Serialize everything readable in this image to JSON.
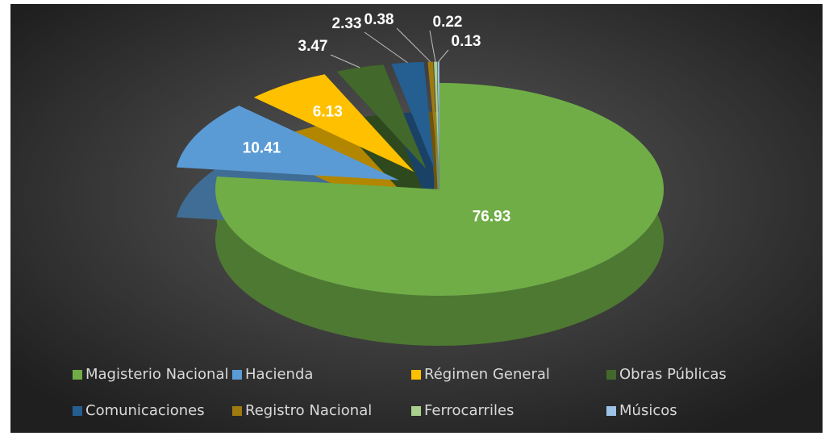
{
  "chart_data": {
    "type": "pie",
    "categories": [
      "Magisterio Nacional",
      "Hacienda",
      "Régimen General",
      "Obras Públicas",
      "Comunicaciones",
      "Registro Nacional",
      "Ferrocarriles",
      "Músicos"
    ],
    "values": [
      76.93,
      10.41,
      6.13,
      3.47,
      2.33,
      0.38,
      0.22,
      0.13
    ],
    "colors": [
      "#70ad47",
      "#5b9bd5",
      "#ffc000",
      "#43682b",
      "#255e91",
      "#9e7a10",
      "#a9d18e",
      "#9dc3e6"
    ],
    "legend": "bottom"
  }
}
